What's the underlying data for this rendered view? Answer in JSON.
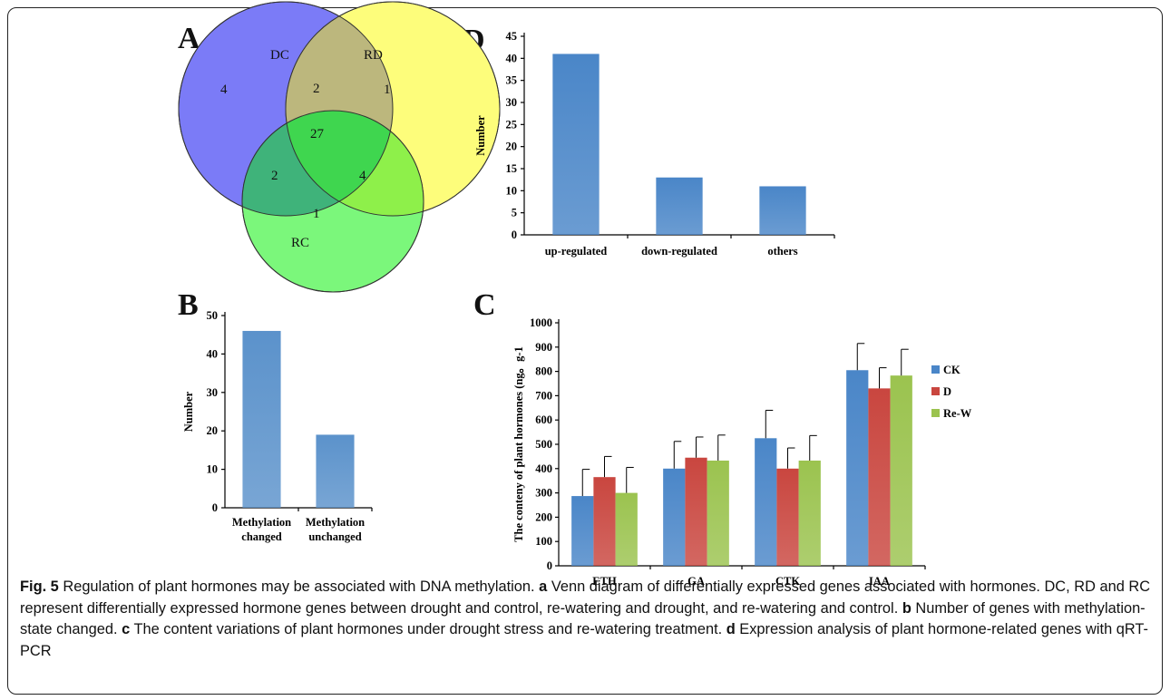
{
  "panels": {
    "A": "A",
    "B": "B",
    "C": "C",
    "D": "D"
  },
  "venn": {
    "sets": [
      "DC",
      "RD",
      "RC"
    ],
    "regions": {
      "dc_only": "4",
      "rd_only": "1",
      "rc_only": "1",
      "dc_rd": "2",
      "dc_rc": "2",
      "rd_rc": "4",
      "all": "27"
    },
    "colors": {
      "DC": "#7b7bf7",
      "RD": "#fdfd7b",
      "RC": "#7bf77b"
    }
  },
  "caption": {
    "fig_label": "Fig. 5",
    "text": " Regulation of plant hormones may be associated with DNA methylation. ",
    "a_label": "a",
    "a_text": " Venn diagram of differentially expressed genes associated with hormones. DC, RD and RC represent differentially expressed hormone genes between drought and control, re-watering and drought, and re-watering and control. ",
    "b_label": "b",
    "b_text": " Number of genes with methylation-state changed. ",
    "c_label": "c",
    "c_text": " The content variations of plant hormones under drought stress and re-watering treatment. ",
    "d_label": "d",
    "d_text": " Expression analysis of plant hormone-related genes with qRT-PCR"
  },
  "chart_data": [
    {
      "panel": "B",
      "type": "bar",
      "categories": [
        "Methylation changed",
        "Methylation unchanged"
      ],
      "category_lines": [
        [
          "Methylation",
          "changed"
        ],
        [
          "Methylation",
          "unchanged"
        ]
      ],
      "values": [
        46,
        19
      ],
      "ylabel": "Number",
      "ylim": [
        0,
        50
      ],
      "yticks": [
        0,
        10,
        20,
        30,
        40,
        50
      ],
      "color": "#5b92cb"
    },
    {
      "panel": "D",
      "type": "bar",
      "categories": [
        "up-regulated",
        "down-regulated",
        "others"
      ],
      "values": [
        41,
        13,
        11
      ],
      "ylabel": "Number",
      "ylim": [
        0,
        45
      ],
      "yticks": [
        0,
        5,
        10,
        15,
        20,
        25,
        30,
        35,
        40,
        45
      ],
      "color": "#4a86c8"
    },
    {
      "panel": "C",
      "type": "bar",
      "categories": [
        "ETH",
        "GA",
        "CTK",
        "IAA"
      ],
      "series": [
        {
          "name": "CK",
          "values": [
            287,
            400,
            525,
            805
          ],
          "errors": [
            110,
            112,
            115,
            110
          ],
          "color": "#4a86c8"
        },
        {
          "name": "D",
          "values": [
            365,
            445,
            400,
            730
          ],
          "errors": [
            85,
            85,
            85,
            85
          ],
          "color": "#c9463f"
        },
        {
          "name": "Re-W",
          "values": [
            300,
            433,
            433,
            783
          ],
          "errors": [
            105,
            105,
            103,
            108
          ],
          "color": "#9bc34f"
        }
      ],
      "ylabel": "The conteny of plant  hormones (ng。g-1",
      "ylim": [
        0,
        1000
      ],
      "yticks": [
        0,
        100,
        200,
        300,
        400,
        500,
        600,
        700,
        800,
        900,
        1000
      ],
      "legend": "right"
    }
  ]
}
